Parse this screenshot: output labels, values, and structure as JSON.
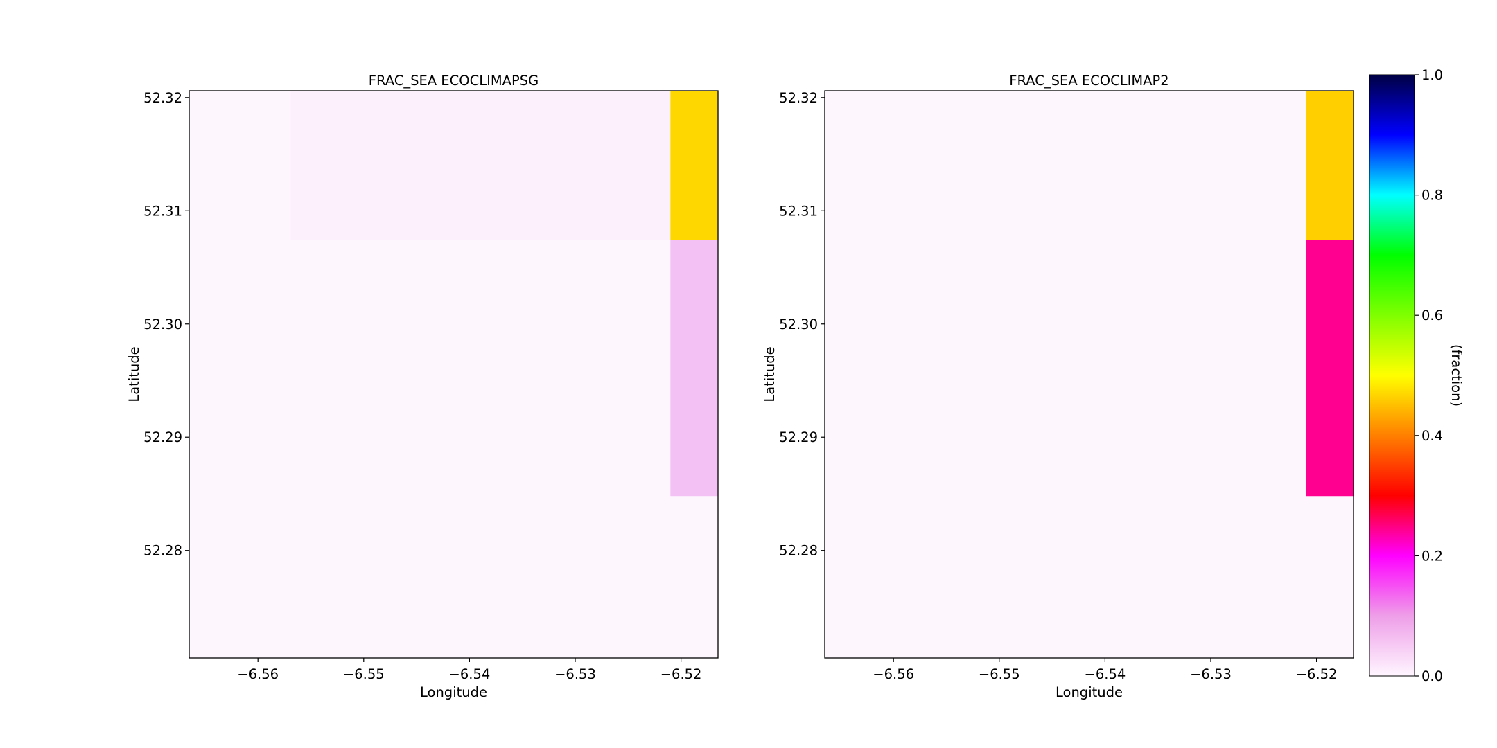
{
  "chart_data": [
    {
      "type": "heatmap",
      "title": "FRAC_SEA ECOCLIMAPSG",
      "xlabel": "Longitude",
      "ylabel": "Latitude",
      "xlim": [
        -6.5665,
        -6.5165
      ],
      "ylim": [
        52.2705,
        52.3206
      ],
      "xticks": [
        -6.56,
        -6.55,
        -6.54,
        -6.53,
        -6.52
      ],
      "xtick_labels": [
        "−6.56",
        "−6.55",
        "−6.54",
        "−6.53",
        "−6.52"
      ],
      "yticks": [
        52.28,
        52.29,
        52.3,
        52.31,
        52.32
      ],
      "ytick_labels": [
        "52.28",
        "52.29",
        "52.30",
        "52.31",
        "52.32"
      ],
      "cells": [
        {
          "lon": [
            -6.5665,
            -6.5165
          ],
          "lat": [
            52.2705,
            52.3206
          ],
          "value": 0.0
        },
        {
          "lon": [
            -6.5569,
            -6.521
          ],
          "lat": [
            52.3074,
            52.3206
          ],
          "value": 0.02
        },
        {
          "lon": [
            -6.521,
            -6.5165
          ],
          "lat": [
            52.3074,
            52.3206
          ],
          "value": 0.42
        },
        {
          "lon": [
            -6.521,
            -6.5165
          ],
          "lat": [
            52.2848,
            52.3074
          ],
          "value": 0.1
        }
      ]
    },
    {
      "type": "heatmap",
      "title": "FRAC_SEA ECOCLIMAP2",
      "xlabel": "Longitude",
      "ylabel": "Latitude",
      "xlim": [
        -6.5665,
        -6.5165
      ],
      "ylim": [
        52.2705,
        52.3206
      ],
      "xticks": [
        -6.56,
        -6.55,
        -6.54,
        -6.53,
        -6.52
      ],
      "xtick_labels": [
        "−6.56",
        "−6.55",
        "−6.54",
        "−6.53",
        "−6.52"
      ],
      "yticks": [
        52.28,
        52.29,
        52.3,
        52.31,
        52.32
      ],
      "ytick_labels": [
        "52.28",
        "52.29",
        "52.30",
        "52.31",
        "52.32"
      ],
      "cells": [
        {
          "lon": [
            -6.5665,
            -6.5165
          ],
          "lat": [
            52.2705,
            52.3206
          ],
          "value": 0.0
        },
        {
          "lon": [
            -6.521,
            -6.5165
          ],
          "lat": [
            52.3074,
            52.3206
          ],
          "value": 0.4
        },
        {
          "lon": [
            -6.521,
            -6.5165
          ],
          "lat": [
            52.2848,
            52.3074
          ],
          "value": 0.22
        }
      ]
    }
  ],
  "colorbar": {
    "label": "(fraction)",
    "range": [
      0.0,
      1.0
    ],
    "ticks": [
      0.0,
      0.2,
      0.4,
      0.6,
      0.8,
      1.0
    ],
    "tick_labels": [
      "0.0",
      "0.2",
      "0.4",
      "0.6",
      "0.8",
      "1.0"
    ],
    "colormap": [
      "#fff6ff",
      "#ee9ee8",
      "#ff00ff",
      "#ff0000",
      "#ffff00",
      "#00ff00",
      "#00ffff",
      "#0000ff",
      "#000044"
    ],
    "colormap_stops": [
      0.0,
      0.1,
      0.2,
      0.3,
      0.5,
      0.7,
      0.8,
      0.9,
      1.0
    ]
  },
  "cell_colors": [
    {
      "value": 0.0,
      "color": "#fdf6fd"
    },
    {
      "value": 0.02,
      "color": "#fcf0fc"
    },
    {
      "value": 0.1,
      "color": "#f4c1f5"
    },
    {
      "value": 0.22,
      "color": "#ff0090"
    },
    {
      "value": 0.4,
      "color": "#ffcf00"
    },
    {
      "value": 0.42,
      "color": "#ffd700"
    }
  ]
}
